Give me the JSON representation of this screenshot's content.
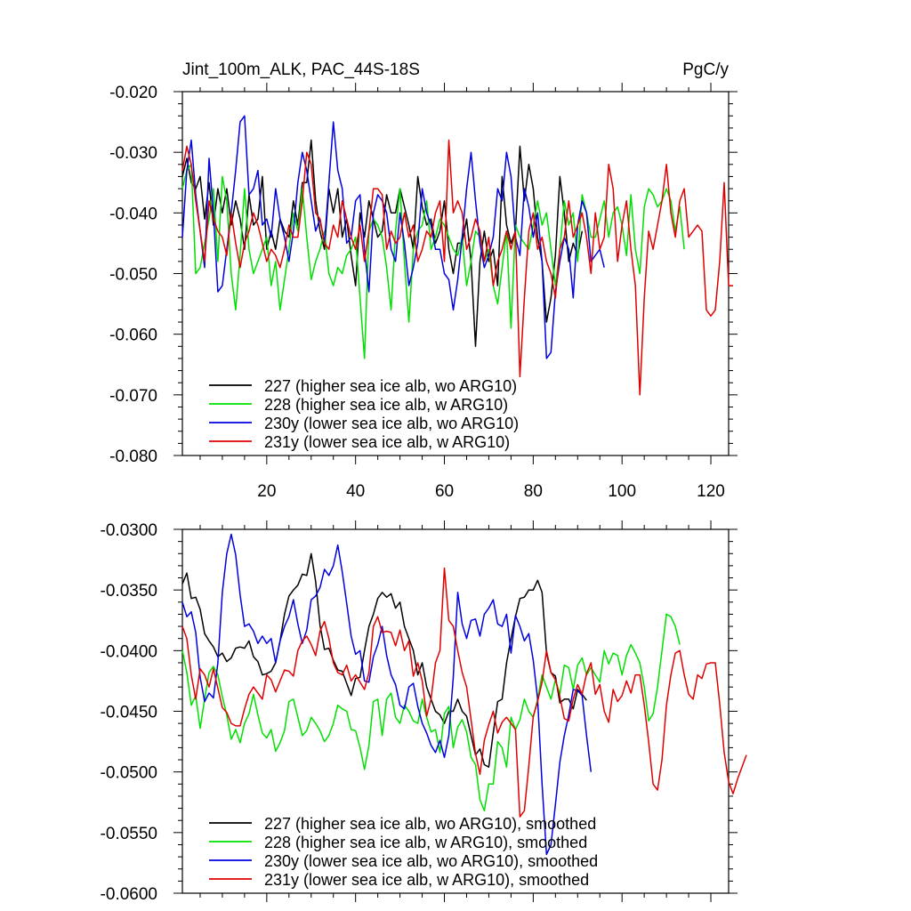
{
  "chart_data": [
    {
      "type": "line",
      "title": "Jint_100m_ALK, PAC_44S-18S",
      "units": "PgC/y",
      "xlim": [
        1,
        124
      ],
      "ylim": [
        -0.08,
        -0.02
      ],
      "xticks": [
        20,
        40,
        60,
        80,
        100,
        120
      ],
      "yticks": [
        -0.02,
        -0.03,
        -0.04,
        -0.05,
        -0.06,
        -0.07,
        -0.08
      ],
      "ytick_labels": [
        "-0.020",
        "-0.030",
        "-0.040",
        "-0.050",
        "-0.060",
        "-0.070",
        "-0.080"
      ],
      "legend_position": "bottom-left",
      "series": [
        {
          "name": "227 (higher sea ice alb, wo ARG10)",
          "color": "#000000",
          "x_start": 1,
          "values": [
            -0.034,
            -0.031,
            -0.035,
            -0.036,
            -0.034,
            -0.041,
            -0.035,
            -0.042,
            -0.036,
            -0.04,
            -0.036,
            -0.042,
            -0.038,
            -0.041,
            -0.046,
            -0.037,
            -0.042,
            -0.041,
            -0.034,
            -0.046,
            -0.043,
            -0.046,
            -0.041,
            -0.043,
            -0.044,
            -0.038,
            -0.042,
            -0.035,
            -0.035,
            -0.028,
            -0.038,
            -0.043,
            -0.046,
            -0.036,
            -0.04,
            -0.036,
            -0.044,
            -0.041,
            -0.047,
            -0.052,
            -0.04,
            -0.044,
            -0.038,
            -0.041,
            -0.044,
            -0.043,
            -0.037,
            -0.04,
            -0.04,
            -0.036,
            -0.039,
            -0.042,
            -0.046,
            -0.034,
            -0.039,
            -0.042,
            -0.041,
            -0.045,
            -0.043,
            -0.038,
            -0.046,
            -0.05,
            -0.045,
            -0.045,
            -0.041,
            -0.048,
            -0.062,
            -0.048,
            -0.043,
            -0.048,
            -0.046,
            -0.052,
            -0.034,
            -0.042,
            -0.045,
            -0.043,
            -0.029,
            -0.038,
            -0.032,
            -0.036,
            -0.044,
            -0.048,
            -0.058,
            -0.054,
            -0.047,
            -0.034,
            -0.04,
            -0.048,
            -0.045,
            -0.047,
            -0.043
          ]
        },
        {
          "name": "228 (higher sea ice alb, w ARG10)",
          "color": "#00e000",
          "x_start": 1,
          "values": [
            -0.036,
            -0.033,
            -0.032,
            -0.05,
            -0.049,
            -0.045,
            -0.041,
            -0.036,
            -0.048,
            -0.034,
            -0.038,
            -0.05,
            -0.056,
            -0.047,
            -0.036,
            -0.046,
            -0.05,
            -0.048,
            -0.046,
            -0.044,
            -0.052,
            -0.048,
            -0.056,
            -0.051,
            -0.046,
            -0.04,
            -0.043,
            -0.036,
            -0.044,
            -0.051,
            -0.048,
            -0.046,
            -0.043,
            -0.05,
            -0.052,
            -0.049,
            -0.05,
            -0.047,
            -0.046,
            -0.044,
            -0.054,
            -0.064,
            -0.043,
            -0.041,
            -0.042,
            -0.044,
            -0.049,
            -0.056,
            -0.043,
            -0.036,
            -0.048,
            -0.058,
            -0.046,
            -0.043,
            -0.042,
            -0.038,
            -0.046,
            -0.044,
            -0.041,
            -0.042,
            -0.044,
            -0.046,
            -0.047,
            -0.044,
            -0.052,
            -0.048,
            -0.043,
            -0.044,
            -0.048,
            -0.046,
            -0.052,
            -0.055,
            -0.049,
            -0.043,
            -0.059,
            -0.042,
            -0.044,
            -0.045,
            -0.046,
            -0.042,
            -0.038,
            -0.042,
            -0.04,
            -0.046,
            -0.052,
            -0.046,
            -0.038,
            -0.042,
            -0.04,
            -0.048,
            -0.037,
            -0.04,
            -0.044,
            -0.044,
            -0.041,
            -0.038,
            -0.044,
            -0.04,
            -0.039,
            -0.042,
            -0.047,
            -0.037,
            -0.046,
            -0.05,
            -0.039,
            -0.036,
            -0.037,
            -0.039,
            -0.038,
            -0.036,
            -0.038,
            -0.043,
            -0.039,
            -0.046
          ]
        },
        {
          "name": "230y (lower sea ice alb, wo ARG10)",
          "color": "#0000e0",
          "x_start": 1,
          "values": [
            -0.044,
            -0.033,
            -0.028,
            -0.037,
            -0.043,
            -0.049,
            -0.031,
            -0.04,
            -0.053,
            -0.052,
            -0.046,
            -0.04,
            -0.033,
            -0.025,
            -0.024,
            -0.037,
            -0.036,
            -0.033,
            -0.042,
            -0.041,
            -0.044,
            -0.036,
            -0.041,
            -0.044,
            -0.048,
            -0.043,
            -0.035,
            -0.03,
            -0.033,
            -0.038,
            -0.043,
            -0.041,
            -0.045,
            -0.035,
            -0.025,
            -0.033,
            -0.036,
            -0.045,
            -0.044,
            -0.038,
            -0.037,
            -0.046,
            -0.053,
            -0.04,
            -0.037,
            -0.038,
            -0.04,
            -0.046,
            -0.048,
            -0.04,
            -0.045,
            -0.052,
            -0.049,
            -0.045,
            -0.036,
            -0.04,
            -0.042,
            -0.046,
            -0.046,
            -0.05,
            -0.051,
            -0.056,
            -0.051,
            -0.044,
            -0.036,
            -0.03,
            -0.038,
            -0.045,
            -0.049,
            -0.047,
            -0.044,
            -0.036,
            -0.038,
            -0.03,
            -0.034,
            -0.044,
            -0.047,
            -0.036,
            -0.039,
            -0.044,
            -0.04,
            -0.048,
            -0.064,
            -0.063,
            -0.053,
            -0.048,
            -0.044,
            -0.046,
            -0.054,
            -0.042,
            -0.038,
            -0.04,
            -0.048,
            -0.047,
            -0.046,
            -0.049
          ]
        },
        {
          "name": "231y (lower sea ice alb, w ARG10)",
          "color": "#e00000",
          "x_start": 1,
          "values": [
            -0.033,
            -0.029,
            -0.032,
            -0.038,
            -0.043,
            -0.048,
            -0.038,
            -0.041,
            -0.043,
            -0.044,
            -0.047,
            -0.04,
            -0.045,
            -0.049,
            -0.045,
            -0.043,
            -0.04,
            -0.042,
            -0.045,
            -0.048,
            -0.046,
            -0.047,
            -0.049,
            -0.046,
            -0.042,
            -0.044,
            -0.044,
            -0.038,
            -0.03,
            -0.032,
            -0.04,
            -0.041,
            -0.045,
            -0.046,
            -0.042,
            -0.044,
            -0.038,
            -0.041,
            -0.044,
            -0.046,
            -0.042,
            -0.048,
            -0.043,
            -0.036,
            -0.036,
            -0.037,
            -0.046,
            -0.043,
            -0.045,
            -0.044,
            -0.04,
            -0.044,
            -0.042,
            -0.048,
            -0.046,
            -0.043,
            -0.044,
            -0.04,
            -0.038,
            -0.048,
            -0.028,
            -0.04,
            -0.038,
            -0.04,
            -0.046,
            -0.044,
            -0.041,
            -0.043,
            -0.048,
            -0.044,
            -0.052,
            -0.048,
            -0.046,
            -0.043,
            -0.046,
            -0.043,
            -0.067,
            -0.054,
            -0.043,
            -0.04,
            -0.046,
            -0.044,
            -0.048,
            -0.05,
            -0.054,
            -0.046,
            -0.044,
            -0.038,
            -0.044,
            -0.042,
            -0.04,
            -0.044,
            -0.05,
            -0.04,
            -0.046,
            -0.044,
            -0.032,
            -0.036,
            -0.048,
            -0.042,
            -0.038,
            -0.046,
            -0.052,
            -0.07,
            -0.054,
            -0.043,
            -0.046,
            -0.042,
            -0.038,
            -0.032,
            -0.04,
            -0.044,
            -0.038,
            -0.036,
            -0.044,
            -0.043,
            -0.042,
            -0.043,
            -0.056,
            -0.057,
            -0.056,
            -0.048,
            -0.035,
            -0.052,
            -0.052
          ]
        }
      ]
    },
    {
      "type": "line",
      "xlim": [
        1,
        124
      ],
      "ylim": [
        -0.06,
        -0.03
      ],
      "yticks": [
        -0.03,
        -0.035,
        -0.04,
        -0.045,
        -0.05,
        -0.055,
        -0.06
      ],
      "ytick_labels": [
        "-0.0300",
        "-0.0350",
        "-0.0400",
        "-0.0450",
        "-0.0500",
        "-0.0550",
        "-0.0600"
      ],
      "legend_position": "bottom-left",
      "series": [
        {
          "name": "227 (higher sea ice alb, wo ARG10), smoothed",
          "color": "#000000",
          "x_start": 1,
          "values": [
            -0.0345,
            -0.0336,
            -0.0357,
            -0.0356,
            -0.0366,
            -0.0386,
            -0.0392,
            -0.0397,
            -0.0405,
            -0.0402,
            -0.0409,
            -0.0406,
            -0.0398,
            -0.0397,
            -0.0398,
            -0.0392,
            -0.0405,
            -0.0409,
            -0.042,
            -0.0419,
            -0.0417,
            -0.041,
            -0.0392,
            -0.037,
            -0.0355,
            -0.035,
            -0.0346,
            -0.0337,
            -0.0338,
            -0.032,
            -0.0343,
            -0.0379,
            -0.0399,
            -0.0398,
            -0.0408,
            -0.0416,
            -0.0417,
            -0.0427,
            -0.0437,
            -0.0423,
            -0.0422,
            -0.04,
            -0.038,
            -0.037,
            -0.0357,
            -0.0352,
            -0.0356,
            -0.0353,
            -0.0365,
            -0.036,
            -0.038,
            -0.039,
            -0.04,
            -0.042,
            -0.041,
            -0.043,
            -0.044,
            -0.045,
            -0.0453,
            -0.046,
            -0.045,
            -0.045,
            -0.044,
            -0.045,
            -0.0454,
            -0.047,
            -0.0486,
            -0.0481,
            -0.0494,
            -0.0496,
            -0.0468,
            -0.0442,
            -0.044,
            -0.041,
            -0.039,
            -0.0372,
            -0.0357,
            -0.0356,
            -0.035,
            -0.035,
            -0.0342,
            -0.0352,
            -0.0402,
            -0.0418,
            -0.0421,
            -0.0443,
            -0.044,
            -0.044,
            -0.0448,
            -0.0432,
            -0.0436,
            -0.0441
          ]
        },
        {
          "name": "228 (higher sea ice alb, w ARG10), smoothed",
          "color": "#00e000",
          "x_start": 1,
          "values": [
            -0.04,
            -0.0418,
            -0.0445,
            -0.0437,
            -0.0464,
            -0.044,
            -0.0418,
            -0.0413,
            -0.042,
            -0.0438,
            -0.0453,
            -0.0473,
            -0.0465,
            -0.0476,
            -0.046,
            -0.0452,
            -0.0436,
            -0.0453,
            -0.0468,
            -0.0472,
            -0.0465,
            -0.0483,
            -0.0476,
            -0.0466,
            -0.0442,
            -0.044,
            -0.0455,
            -0.047,
            -0.0466,
            -0.0455,
            -0.046,
            -0.0466,
            -0.0475,
            -0.047,
            -0.046,
            -0.0445,
            -0.0448,
            -0.045,
            -0.0465,
            -0.0466,
            -0.048,
            -0.0498,
            -0.0478,
            -0.0442,
            -0.044,
            -0.047,
            -0.044,
            -0.0435,
            -0.0455,
            -0.046,
            -0.0445,
            -0.045,
            -0.0458,
            -0.046,
            -0.044,
            -0.0455,
            -0.0467,
            -0.0465,
            -0.0484,
            -0.0452,
            -0.0446,
            -0.048,
            -0.0463,
            -0.0457,
            -0.0467,
            -0.0488,
            -0.0494,
            -0.0523,
            -0.0532,
            -0.051,
            -0.051,
            -0.0475,
            -0.048,
            -0.0496,
            -0.0455,
            -0.0465,
            -0.0457,
            -0.044,
            -0.045,
            -0.0455,
            -0.044,
            -0.042,
            -0.043,
            -0.044,
            -0.0424,
            -0.0436,
            -0.0412,
            -0.0414,
            -0.0432,
            -0.0412,
            -0.0406,
            -0.042,
            -0.0414,
            -0.042,
            -0.0426,
            -0.04,
            -0.0411,
            -0.0402,
            -0.0404,
            -0.042,
            -0.0404,
            -0.0395,
            -0.0402,
            -0.041,
            -0.043,
            -0.0458,
            -0.0452,
            -0.043,
            -0.04,
            -0.037,
            -0.0372,
            -0.038,
            -0.0395
          ]
        },
        {
          "name": "230y (lower sea ice alb, wo ARG10), smoothed",
          "color": "#0000e0",
          "x_start": 1,
          "values": [
            -0.036,
            -0.0372,
            -0.0368,
            -0.0385,
            -0.0422,
            -0.0442,
            -0.0435,
            -0.0439,
            -0.041,
            -0.0352,
            -0.032,
            -0.0304,
            -0.0321,
            -0.0354,
            -0.038,
            -0.0378,
            -0.0384,
            -0.0394,
            -0.0388,
            -0.0394,
            -0.039,
            -0.041,
            -0.0392,
            -0.038,
            -0.0372,
            -0.0358,
            -0.0378,
            -0.0394,
            -0.0383,
            -0.0358,
            -0.0355,
            -0.0348,
            -0.0333,
            -0.0338,
            -0.033,
            -0.0313,
            -0.0335,
            -0.0361,
            -0.0388,
            -0.0403,
            -0.04,
            -0.0425,
            -0.0426,
            -0.0405,
            -0.0395,
            -0.038,
            -0.0404,
            -0.042,
            -0.0428,
            -0.0445,
            -0.0448,
            -0.043,
            -0.0427,
            -0.0446,
            -0.046,
            -0.0468,
            -0.0478,
            -0.0484,
            -0.0474,
            -0.0488,
            -0.047,
            -0.0422,
            -0.0352,
            -0.0378,
            -0.039,
            -0.0375,
            -0.0374,
            -0.0388,
            -0.037,
            -0.0365,
            -0.0358,
            -0.0378,
            -0.038,
            -0.037,
            -0.0402,
            -0.0371,
            -0.038,
            -0.0392,
            -0.0386,
            -0.0408,
            -0.044,
            -0.051,
            -0.0568,
            -0.056,
            -0.0527,
            -0.0492,
            -0.047,
            -0.0453,
            -0.0432,
            -0.0433,
            -0.0437,
            -0.047,
            -0.05
          ]
        },
        {
          "name": "231y (lower sea ice alb, w ARG10), smoothed",
          "color": "#e00000",
          "x_start": 1,
          "values": [
            -0.038,
            -0.039,
            -0.042,
            -0.044,
            -0.0415,
            -0.042,
            -0.043,
            -0.0415,
            -0.0431,
            -0.0447,
            -0.0451,
            -0.046,
            -0.0462,
            -0.0462,
            -0.0448,
            -0.0436,
            -0.043,
            -0.0435,
            -0.044,
            -0.042,
            -0.0424,
            -0.0434,
            -0.0425,
            -0.0416,
            -0.0417,
            -0.0421,
            -0.04,
            -0.0392,
            -0.0388,
            -0.0395,
            -0.0404,
            -0.0384,
            -0.0376,
            -0.039,
            -0.041,
            -0.0418,
            -0.042,
            -0.0412,
            -0.0425,
            -0.042,
            -0.0426,
            -0.0432,
            -0.0418,
            -0.038,
            -0.0372,
            -0.0385,
            -0.0384,
            -0.0385,
            -0.0396,
            -0.0383,
            -0.04,
            -0.0392,
            -0.0421,
            -0.041,
            -0.0425,
            -0.0454,
            -0.044,
            -0.041,
            -0.04,
            -0.0332,
            -0.0375,
            -0.038,
            -0.04,
            -0.0418,
            -0.043,
            -0.0457,
            -0.0485,
            -0.0502,
            -0.0474,
            -0.0461,
            -0.045,
            -0.0468,
            -0.0459,
            -0.0455,
            -0.046,
            -0.0465,
            -0.0537,
            -0.0532,
            -0.0495,
            -0.0454,
            -0.0442,
            -0.0426,
            -0.04,
            -0.0418,
            -0.0424,
            -0.0438,
            -0.0456,
            -0.0458,
            -0.044,
            -0.0428,
            -0.0436,
            -0.0419,
            -0.041,
            -0.0436,
            -0.0428,
            -0.045,
            -0.0459,
            -0.0432,
            -0.0442,
            -0.0437,
            -0.0425,
            -0.0435,
            -0.042,
            -0.042,
            -0.0445,
            -0.0475,
            -0.051,
            -0.0515,
            -0.049,
            -0.0445,
            -0.042,
            -0.0402,
            -0.04,
            -0.042,
            -0.0436,
            -0.044,
            -0.042,
            -0.0423,
            -0.0411,
            -0.041,
            -0.041,
            -0.0444,
            -0.0484,
            -0.0508,
            -0.0518,
            -0.0506,
            -0.0496,
            -0.0486
          ]
        }
      ]
    }
  ]
}
